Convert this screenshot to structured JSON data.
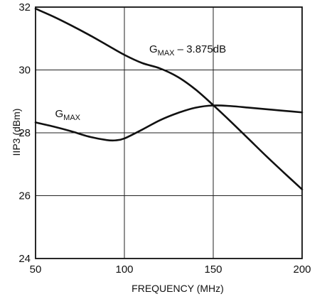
{
  "chart_data": {
    "type": "line",
    "title": "",
    "xlabel": "FREQUENCY (MHz)",
    "ylabel": "IIP3 (dBm)",
    "xlim": [
      50,
      200
    ],
    "ylim": [
      24,
      32
    ],
    "x_ticks": [
      50,
      100,
      150,
      200
    ],
    "y_ticks": [
      24,
      26,
      28,
      30,
      32
    ],
    "grid": true,
    "legend": "none",
    "colors": {
      "line": "#111111",
      "grid": "#222222",
      "frame": "#111111",
      "text": "#111111",
      "background": "#ffffff"
    },
    "series": [
      {
        "name": "GMAX",
        "label_main": "G",
        "label_sub": "MAX",
        "label_suffix": "",
        "x": [
          50,
          60,
          70,
          80,
          90,
          95,
          100,
          110,
          120,
          130,
          140,
          150,
          160,
          170,
          180,
          190,
          200
        ],
        "y": [
          28.33,
          28.2,
          28.05,
          27.88,
          27.77,
          27.76,
          27.82,
          28.1,
          28.4,
          28.63,
          28.8,
          28.87,
          28.85,
          28.8,
          28.75,
          28.7,
          28.65
        ]
      },
      {
        "name": "GMAX – 3.875dB",
        "label_main": "G",
        "label_sub": "MAX",
        "label_suffix": " – 3.875dB",
        "x": [
          50,
          60,
          70,
          80,
          90,
          100,
          110,
          120,
          130,
          140,
          150,
          160,
          170,
          180,
          190,
          200
        ],
        "y": [
          31.95,
          31.7,
          31.42,
          31.12,
          30.8,
          30.48,
          30.22,
          30.05,
          29.78,
          29.38,
          28.88,
          28.35,
          27.8,
          27.25,
          26.72,
          26.2
        ]
      }
    ]
  }
}
